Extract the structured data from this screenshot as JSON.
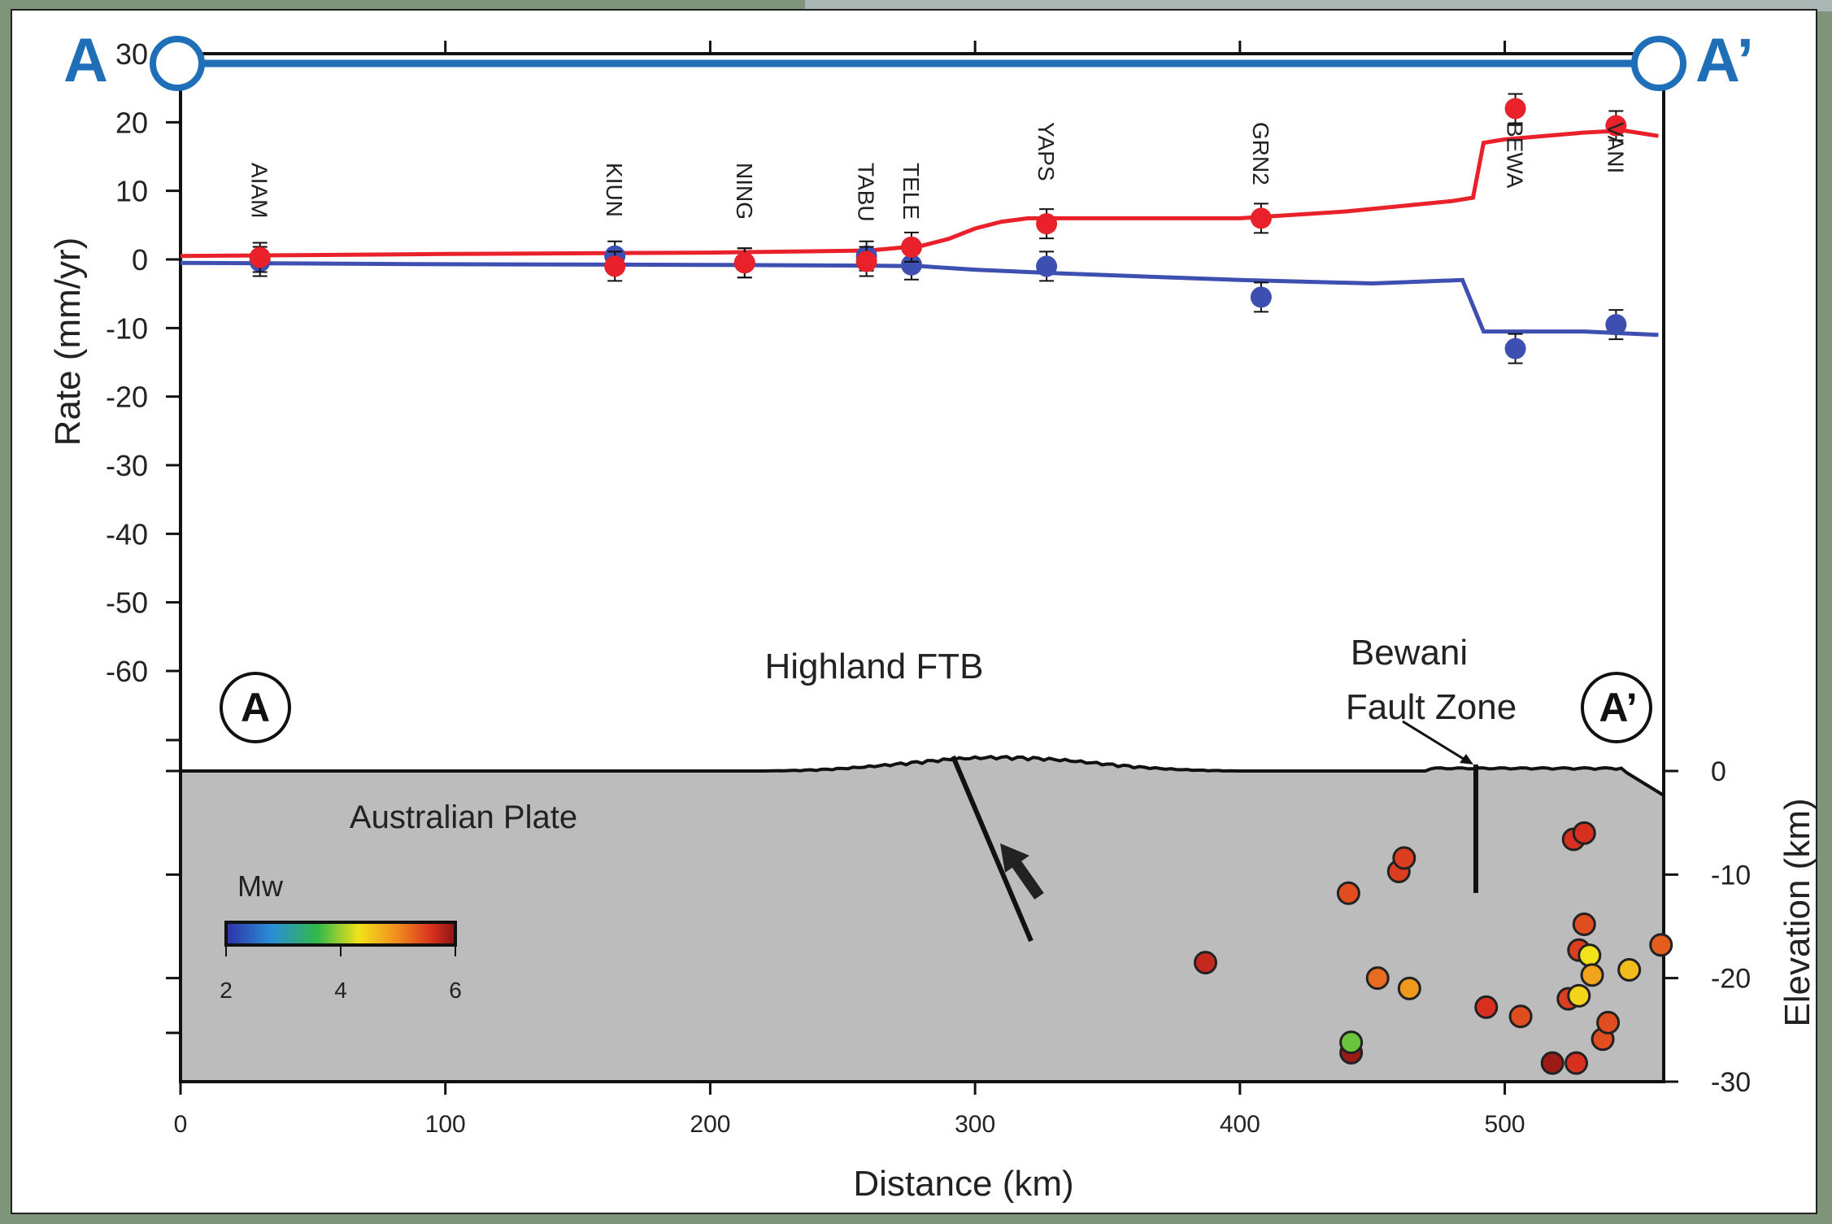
{
  "profile_labels": {
    "start": "A",
    "end": "A’",
    "circle_start": "A",
    "circle_end": "A’"
  },
  "colors": {
    "east": "#e8212b",
    "north": "#3d4fb0",
    "crust": "#bcbcbc",
    "profile_line": "#1e6eb8"
  },
  "chart_data": [
    {
      "type": "line",
      "ylabel": "Rate (mm/yr)",
      "xlim": [
        0,
        560
      ],
      "ylim": [
        -60,
        30
      ],
      "yticks": [
        30,
        20,
        10,
        0,
        -10,
        -20,
        -30,
        -40,
        -50,
        -60
      ],
      "xticks_top": [
        100,
        200,
        300,
        400,
        500
      ],
      "series": [
        {
          "color": "#e8212b",
          "x": [
            0,
            100,
            200,
            260,
            280,
            290,
            300,
            310,
            320,
            340,
            400,
            440,
            480,
            488,
            492,
            500,
            530,
            545,
            558
          ],
          "y": [
            0.5,
            0.8,
            1.0,
            1.3,
            2.0,
            3.0,
            4.5,
            5.5,
            6.0,
            6.0,
            6.0,
            7.0,
            8.5,
            9.0,
            17.0,
            17.5,
            18.5,
            18.8,
            18.0
          ]
        },
        {
          "color": "#3d4fb0",
          "x": [
            0,
            100,
            200,
            260,
            280,
            300,
            330,
            400,
            450,
            484,
            492,
            500,
            530,
            558
          ],
          "y": [
            -0.5,
            -0.7,
            -0.8,
            -0.9,
            -1.0,
            -1.5,
            -2.0,
            -3.0,
            -3.5,
            -3.0,
            -10.5,
            -10.5,
            -10.5,
            -11.0
          ]
        }
      ],
      "stations": [
        {
          "name": "AIAM",
          "x": 30,
          "east": 0.3,
          "north": -0.3
        },
        {
          "name": "KIUN",
          "x": 164,
          "east": -1.0,
          "north": 0.5
        },
        {
          "name": "NING",
          "x": 213,
          "east": -0.5,
          "north": -0.5
        },
        {
          "name": "TABU",
          "x": 259,
          "east": -0.3,
          "north": 0.5
        },
        {
          "name": "TELE",
          "x": 276,
          "east": 1.8,
          "north": -0.8
        },
        {
          "name": "YAPS",
          "x": 327,
          "east": 5.2,
          "north": -1.0
        },
        {
          "name": "GRN2",
          "x": 408,
          "east": 6.0,
          "north": -5.5
        },
        {
          "name": "BEWA",
          "x": 504,
          "east": 22.0,
          "north": -13.0
        },
        {
          "name": "VANI",
          "x": 542,
          "east": 19.5,
          "north": -9.5
        }
      ]
    },
    {
      "type": "scatter",
      "xlabel": "Distance (km)",
      "ylabel": "Elevation (km)",
      "xlim": [
        0,
        560
      ],
      "ylim": [
        -30,
        0
      ],
      "xticks": [
        0,
        100,
        200,
        300,
        400,
        500
      ],
      "yticks_right": [
        0,
        -10,
        -20,
        -30
      ],
      "annotations": {
        "highland": "Highland FTB",
        "bewani_1": "Bewani",
        "bewani_2": "Fault Zone",
        "plate": "Australian Plate"
      },
      "colorbar": {
        "label": "Mw",
        "ticks": [
          2,
          4,
          6
        ],
        "range": [
          2,
          6
        ]
      },
      "earthquakes": [
        {
          "x": 387,
          "y": -18.5,
          "mw": 5.7
        },
        {
          "x": 441,
          "y": -11.8,
          "mw": 5.4
        },
        {
          "x": 442,
          "y": -27.2,
          "mw": 5.9
        },
        {
          "x": 442,
          "y": -26.2,
          "mw": 3.8
        },
        {
          "x": 452,
          "y": -20.0,
          "mw": 5.2
        },
        {
          "x": 460,
          "y": -9.7,
          "mw": 5.5
        },
        {
          "x": 462,
          "y": -8.4,
          "mw": 5.5
        },
        {
          "x": 464,
          "y": -21.0,
          "mw": 4.9
        },
        {
          "x": 493,
          "y": -22.8,
          "mw": 5.6
        },
        {
          "x": 506,
          "y": -23.7,
          "mw": 5.4
        },
        {
          "x": 518,
          "y": -28.2,
          "mw": 5.9
        },
        {
          "x": 524,
          "y": -22.0,
          "mw": 5.5
        },
        {
          "x": 526,
          "y": -6.6,
          "mw": 5.6
        },
        {
          "x": 527,
          "y": -28.2,
          "mw": 5.6
        },
        {
          "x": 528,
          "y": -17.3,
          "mw": 5.5
        },
        {
          "x": 528,
          "y": -21.7,
          "mw": 4.4
        },
        {
          "x": 530,
          "y": -6.0,
          "mw": 5.6
        },
        {
          "x": 530,
          "y": -14.8,
          "mw": 5.4
        },
        {
          "x": 532,
          "y": -17.8,
          "mw": 4.3
        },
        {
          "x": 533,
          "y": -19.7,
          "mw": 4.8
        },
        {
          "x": 537,
          "y": -25.9,
          "mw": 5.4
        },
        {
          "x": 539,
          "y": -24.3,
          "mw": 5.4
        },
        {
          "x": 547,
          "y": -19.2,
          "mw": 4.6
        },
        {
          "x": 559,
          "y": -16.8,
          "mw": 5.3
        }
      ]
    }
  ]
}
